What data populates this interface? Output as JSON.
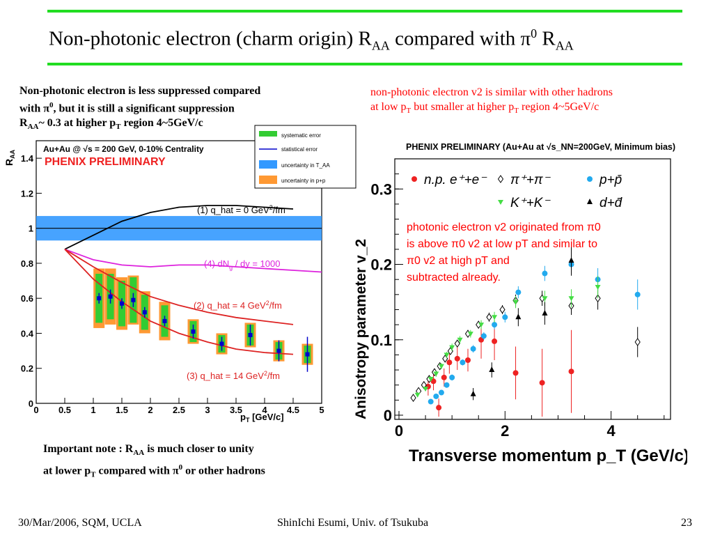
{
  "slide": {
    "title_main": "Non-photonic electron (charm origin) R",
    "title_sub1": "AA",
    "title_mid": " compared with π",
    "title_sup": "0",
    "title_end": " R",
    "title_sub2": "AA",
    "rule_color": "#22dd22"
  },
  "left_note": {
    "l1": "Non-photonic electron is less suppressed compared",
    "l2a": "with π",
    "l2sup": "0",
    "l2b": ", but it is still a significant suppression",
    "l3a": "R",
    "l3sub": "AA",
    "l3b": "~ 0.3 at higher p",
    "l3sub2": "T",
    "l3c": " region 4~5GeV/c"
  },
  "right_note": {
    "l1": "non-photonic electron v2 is similar with other hadrons",
    "l2a": "at low p",
    "l2sub": "T",
    "l2b": " but smaller at higher p",
    "l2sub2": "T",
    "l2c": " region 4~5GeV/c"
  },
  "bottom_note": {
    "l1a": "Important note : R",
    "l1sub": "AA",
    "l1b": " is much closer to unity",
    "l2a": "at lower p",
    "l2sub": "T",
    "l2b": " compared with π",
    "l2sup": "0",
    "l2c": " or other hadrons"
  },
  "footer": {
    "left": "30/Mar/2006, SQM, UCLA",
    "center": "ShinIchi Esumi, Univ. of Tsukuba",
    "right": "23"
  },
  "chart_data": [
    {
      "type": "scatter",
      "header": "Au+Au @ √s = 200 GeV, 0-10% Centrality",
      "title": "PHENIX PRELIMINARY",
      "xlabel": "p_T [GeV/c]",
      "ylabel": "R_AA",
      "xlim": [
        0,
        5
      ],
      "ylim": [
        0,
        1.5
      ],
      "xticks": [
        "0",
        "0.5",
        "1",
        "1.5",
        "2",
        "2.5",
        "3",
        "3.5",
        "4",
        "4.5",
        "5"
      ],
      "yticks": [
        "0",
        "0.2",
        "0.4",
        "0.6",
        "0.8",
        "1",
        "1.2",
        "1.4"
      ],
      "legend": [
        "systematic error",
        "statistical error",
        "uncertainty in T_AA",
        "uncertainty in p+p"
      ],
      "legend_colors": [
        "#33cc33",
        "#0000cc",
        "#3399ff",
        "#ff9933"
      ],
      "tAA_band": [
        0.93,
        1.07
      ],
      "unity": 1.0,
      "points": {
        "x": [
          1.1,
          1.3,
          1.5,
          1.7,
          1.9,
          2.25,
          2.75,
          3.25,
          3.75,
          4.25,
          4.75
        ],
        "y": [
          0.6,
          0.61,
          0.57,
          0.59,
          0.52,
          0.47,
          0.41,
          0.34,
          0.39,
          0.3,
          0.28
        ],
        "stat": [
          0.03,
          0.04,
          0.03,
          0.04,
          0.03,
          0.03,
          0.04,
          0.04,
          0.06,
          0.06,
          0.1
        ],
        "sys": [
          0.14,
          0.13,
          0.13,
          0.13,
          0.1,
          0.09,
          0.06,
          0.05,
          0.06,
          0.05,
          0.05
        ],
        "pp_unc": [
          0.17,
          0.16,
          0.15,
          0.14,
          0.12,
          0.11,
          0.07,
          0.06,
          0.07,
          0.06,
          0.06
        ]
      },
      "curves": [
        {
          "name": "(1) q_hat = 0 GeV²/fm",
          "color": "#000000",
          "x": [
            0.5,
            1.0,
            1.5,
            2.0,
            2.5,
            3.0,
            3.5,
            4.0,
            4.5
          ],
          "y": [
            0.88,
            0.96,
            1.04,
            1.09,
            1.12,
            1.13,
            1.13,
            1.12,
            1.11
          ]
        },
        {
          "name": "(4) dN_g / dy = 1000",
          "color": "#dd22dd",
          "x": [
            0.5,
            1.0,
            1.5,
            2.0,
            2.5,
            3.0,
            3.5,
            4.0,
            4.5,
            5.0
          ],
          "y": [
            0.88,
            0.82,
            0.79,
            0.78,
            0.79,
            0.79,
            0.78,
            0.77,
            0.76,
            0.75
          ]
        },
        {
          "name": "(2) q_hat = 4 GeV²/fm",
          "color": "#dd2222",
          "x": [
            0.5,
            1.0,
            1.5,
            2.0,
            2.5,
            3.0,
            3.5,
            4.0,
            4.5
          ],
          "y": [
            0.88,
            0.78,
            0.69,
            0.61,
            0.56,
            0.52,
            0.49,
            0.47,
            0.45
          ]
        },
        {
          "name": "(3) q_hat = 14 GeV²/fm",
          "color": "#dd2222",
          "x": [
            0.5,
            1.0,
            1.5,
            2.0,
            2.5,
            3.0,
            3.5,
            4.0,
            4.5
          ],
          "y": [
            0.88,
            0.71,
            0.58,
            0.47,
            0.4,
            0.35,
            0.31,
            0.29,
            0.28
          ]
        }
      ]
    },
    {
      "type": "scatter",
      "header": "PHENIX PRELIMINARY (Au+Au at √s_NN=200GeV, Minimum bias)",
      "xlabel": "Transverse momentum p_T (GeV/c)",
      "ylabel": "Anisotropy parameter v_2",
      "xlim": [
        0,
        5.2
      ],
      "ylim": [
        0,
        0.34
      ],
      "xticks": [
        "0",
        "2",
        "4"
      ],
      "yticks": [
        "0",
        "0.1",
        "0.2",
        "0.3"
      ],
      "annotation": [
        "photonic electron v2 originated from π0",
        "is above π0 v2 at low pT and similar to",
        " π0 v2 at high pT and",
        "subtracted already."
      ],
      "series": [
        {
          "name": "n.p. e⁺+e⁻",
          "color": "#ee2222",
          "marker": "circle",
          "x": [
            0.55,
            0.65,
            0.75,
            0.85,
            0.95,
            1.1,
            1.3,
            1.55,
            1.8,
            2.2,
            2.7,
            3.25
          ],
          "y": [
            0.038,
            0.045,
            0.01,
            0.05,
            0.07,
            0.075,
            0.073,
            0.1,
            0.098,
            0.056,
            0.043,
            0.058
          ],
          "err": [
            0.012,
            0.012,
            0.012,
            0.012,
            0.015,
            0.015,
            0.015,
            0.025,
            0.025,
            0.035,
            0.045,
            0.055
          ]
        },
        {
          "name": "π⁺+π⁻",
          "color": "#000000",
          "marker": "open-diamond",
          "x": [
            0.27,
            0.37,
            0.47,
            0.57,
            0.67,
            0.77,
            0.87,
            0.97,
            1.1,
            1.3,
            1.5,
            1.7,
            1.95,
            2.2,
            2.7,
            3.25,
            3.75,
            4.5
          ],
          "y": [
            0.023,
            0.032,
            0.04,
            0.048,
            0.057,
            0.065,
            0.075,
            0.085,
            0.095,
            0.108,
            0.12,
            0.13,
            0.14,
            0.152,
            0.155,
            0.145,
            0.155,
            0.097
          ],
          "err": [
            0.003,
            0.003,
            0.003,
            0.003,
            0.003,
            0.003,
            0.004,
            0.004,
            0.004,
            0.005,
            0.005,
            0.006,
            0.006,
            0.008,
            0.01,
            0.012,
            0.015,
            0.02
          ]
        },
        {
          "name": "p+p̄",
          "color": "#22aaee",
          "marker": "circle",
          "x": [
            0.6,
            0.7,
            0.8,
            0.9,
            1.0,
            1.2,
            1.4,
            1.6,
            1.8,
            2.0,
            2.25,
            2.75,
            3.25,
            3.75,
            4.5
          ],
          "y": [
            0.018,
            0.025,
            0.03,
            0.04,
            0.05,
            0.07,
            0.088,
            0.105,
            0.12,
            0.13,
            0.163,
            0.188,
            0.2,
            0.18,
            0.16
          ],
          "err": [
            0.003,
            0.003,
            0.003,
            0.003,
            0.004,
            0.004,
            0.005,
            0.005,
            0.006,
            0.007,
            0.008,
            0.01,
            0.012,
            0.015,
            0.02
          ]
        },
        {
          "name": "K⁺+K⁻",
          "color": "#44dd44",
          "marker": "triangle-down",
          "x": [
            0.35,
            0.5,
            0.6,
            0.7,
            0.8,
            0.9,
            1.0,
            1.15,
            1.35,
            1.55,
            1.8,
            2.2,
            2.75,
            3.25,
            3.75
          ],
          "y": [
            0.027,
            0.035,
            0.048,
            0.055,
            0.065,
            0.08,
            0.09,
            0.1,
            0.108,
            0.12,
            0.13,
            0.15,
            0.155,
            0.155,
            0.17
          ],
          "err": [
            0.003,
            0.003,
            0.003,
            0.004,
            0.004,
            0.004,
            0.005,
            0.005,
            0.005,
            0.006,
            0.007,
            0.008,
            0.01,
            0.012,
            0.015
          ]
        },
        {
          "name": "d+d̄",
          "color": "#000000",
          "marker": "triangle-up",
          "x": [
            1.4,
            1.75,
            2.25,
            2.75,
            3.25
          ],
          "y": [
            0.028,
            0.06,
            0.13,
            0.135,
            0.205
          ],
          "err": [
            0.008,
            0.01,
            0.012,
            0.015,
            0.02
          ]
        }
      ]
    }
  ]
}
